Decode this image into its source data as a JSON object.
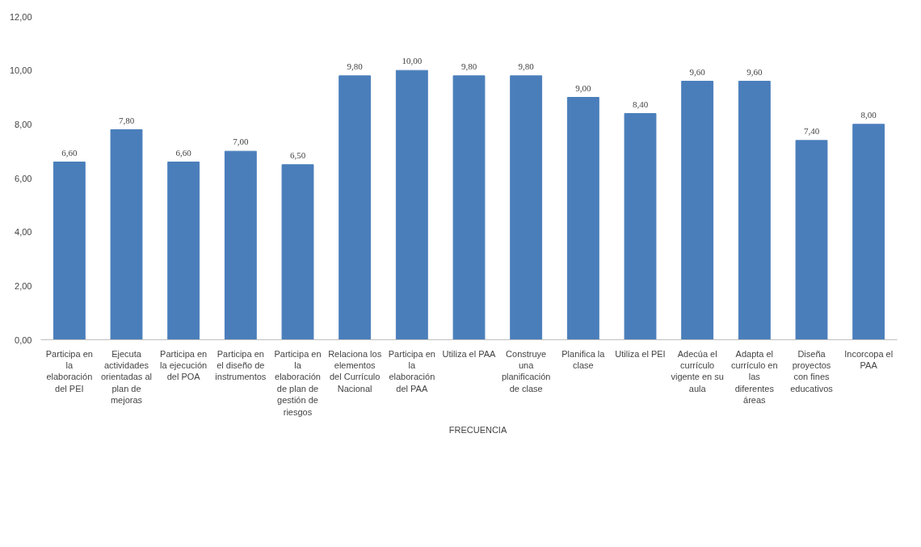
{
  "chart_data": {
    "type": "bar",
    "categories": [
      "Participa en\nla\nelaboración\ndel PEI",
      "Ejecuta\nactividades\norientadas al\nplan de\nmejoras",
      "Participa en\nla ejecución\ndel POA",
      "Participa en\nel diseño de\ninstrumentos",
      "Participa en\nla\nelaboración\nde plan de\ngestión de\nriesgos",
      "Relaciona los\nelementos\ndel Currículo\nNacional",
      "Participa en\nla\nelaboración\ndel PAA",
      "Utiliza el PAA",
      "Construye\nuna\nplanificación\nde clase",
      "Planifica la\nclase",
      "Utiliza el PEI",
      "Adecúa el\ncurrículo\nvigente en su\naula",
      "Adapta el\ncurrículo en\nlas\ndiferentes\náreas",
      "Diseña\nproyectos\ncon fines\neducativos",
      "Incorcopa el\nPAA"
    ],
    "series": [
      {
        "name": "FRECUENCIA",
        "color": "#4a7ebb",
        "values": [
          6.6,
          7.8,
          6.6,
          7.0,
          6.5,
          9.8,
          10.0,
          9.8,
          9.8,
          9.0,
          8.4,
          9.6,
          9.6,
          7.4,
          8.0
        ],
        "value_labels": [
          "6,60",
          "7,80",
          "6,60",
          "7,00",
          "6,50",
          "9,80",
          "10,00",
          "9,80",
          "9,80",
          "9,00",
          "8,40",
          "9,60",
          "9,60",
          "7,40",
          "8,00"
        ]
      }
    ],
    "ylim": [
      0,
      12
    ],
    "yticks": [
      {
        "value": 0,
        "label": "0,00"
      },
      {
        "value": 2,
        "label": "2,00"
      },
      {
        "value": 4,
        "label": "4,00"
      },
      {
        "value": 6,
        "label": "6,00"
      },
      {
        "value": 8,
        "label": "8,00"
      },
      {
        "value": 10,
        "label": "10,00"
      },
      {
        "value": 12,
        "label": "12,00"
      }
    ],
    "grid": false,
    "legend": "bottom"
  }
}
